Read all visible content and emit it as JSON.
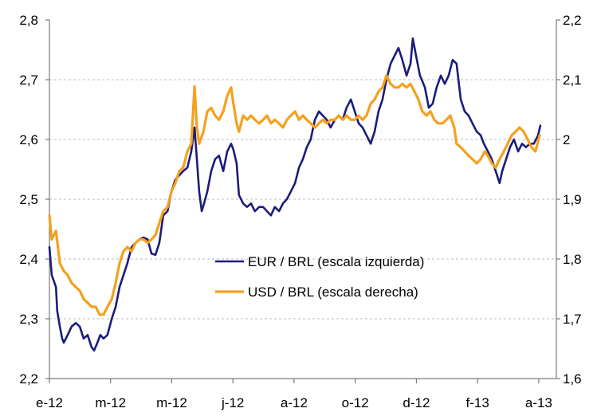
{
  "chart_data": {
    "type": "line",
    "title": "",
    "xlabel": "",
    "ylabel": "",
    "grid": true,
    "legend_position": "center",
    "xlim": [
      0,
      15.54
    ],
    "xticks": [
      {
        "value": 0,
        "label": "e-12"
      },
      {
        "value": 1.875,
        "label": "m-12"
      },
      {
        "value": 3.75,
        "label": "m-12"
      },
      {
        "value": 5.625,
        "label": "j-12"
      },
      {
        "value": 7.5,
        "label": "a-12"
      },
      {
        "value": 9.375,
        "label": "o-12"
      },
      {
        "value": 11.25,
        "label": "d-12"
      },
      {
        "value": 13.125,
        "label": "f-13"
      },
      {
        "value": 15,
        "label": "a-13"
      }
    ],
    "y_left": {
      "ylim": [
        2.2,
        2.8
      ],
      "ticks": [
        {
          "value": 2.8,
          "label": "2,8"
        },
        {
          "value": 2.7,
          "label": "2,7"
        },
        {
          "value": 2.6,
          "label": "2,6"
        },
        {
          "value": 2.5,
          "label": "2,5"
        },
        {
          "value": 2.4,
          "label": "2,4"
        },
        {
          "value": 2.3,
          "label": "2,3"
        },
        {
          "value": 2.2,
          "label": "2,2"
        }
      ]
    },
    "y_right": {
      "ylim": [
        1.6,
        2.2
      ],
      "ticks": [
        {
          "value": 2.2,
          "label": "2,2"
        },
        {
          "value": 2.1,
          "label": "2,1"
        },
        {
          "value": 2.0,
          "label": "2"
        },
        {
          "value": 1.9,
          "label": "1,9"
        },
        {
          "value": 1.8,
          "label": "1,8"
        },
        {
          "value": 1.7,
          "label": "1,7"
        },
        {
          "value": 1.6,
          "label": "1,6"
        }
      ]
    },
    "series": [
      {
        "name": "EUR / BRL (escala izquierda)",
        "secondary_axis": false,
        "color": "#1C1C7A",
        "points": [
          [
            0,
            2.42
          ],
          [
            0.07,
            2.373
          ],
          [
            0.2,
            2.353
          ],
          [
            0.24,
            2.313
          ],
          [
            0.32,
            2.287
          ],
          [
            0.39,
            2.267
          ],
          [
            0.44,
            2.26
          ],
          [
            0.56,
            2.273
          ],
          [
            0.68,
            2.287
          ],
          [
            0.81,
            2.293
          ],
          [
            0.93,
            2.287
          ],
          [
            1.05,
            2.267
          ],
          [
            1.17,
            2.273
          ],
          [
            1.29,
            2.253
          ],
          [
            1.37,
            2.247
          ],
          [
            1.47,
            2.26
          ],
          [
            1.56,
            2.273
          ],
          [
            1.66,
            2.267
          ],
          [
            1.78,
            2.273
          ],
          [
            1.91,
            2.3
          ],
          [
            2.03,
            2.32
          ],
          [
            2.15,
            2.353
          ],
          [
            2.27,
            2.373
          ],
          [
            2.39,
            2.393
          ],
          [
            2.52,
            2.42
          ],
          [
            2.64,
            2.427
          ],
          [
            2.76,
            2.433
          ],
          [
            2.88,
            2.436
          ],
          [
            3.01,
            2.433
          ],
          [
            3.13,
            2.409
          ],
          [
            3.25,
            2.407
          ],
          [
            3.37,
            2.427
          ],
          [
            3.49,
            2.473
          ],
          [
            3.62,
            2.48
          ],
          [
            3.74,
            2.513
          ],
          [
            3.86,
            2.533
          ],
          [
            3.98,
            2.54
          ],
          [
            4.1,
            2.547
          ],
          [
            4.23,
            2.553
          ],
          [
            4.35,
            2.58
          ],
          [
            4.45,
            2.62
          ],
          [
            4.52,
            2.567
          ],
          [
            4.59,
            2.513
          ],
          [
            4.67,
            2.48
          ],
          [
            4.74,
            2.493
          ],
          [
            4.84,
            2.513
          ],
          [
            4.96,
            2.547
          ],
          [
            5.08,
            2.567
          ],
          [
            5.2,
            2.573
          ],
          [
            5.33,
            2.547
          ],
          [
            5.45,
            2.58
          ],
          [
            5.57,
            2.593
          ],
          [
            5.64,
            2.583
          ],
          [
            5.74,
            2.56
          ],
          [
            5.81,
            2.507
          ],
          [
            5.94,
            2.493
          ],
          [
            6.06,
            2.487
          ],
          [
            6.18,
            2.493
          ],
          [
            6.3,
            2.48
          ],
          [
            6.43,
            2.487
          ],
          [
            6.55,
            2.487
          ],
          [
            6.67,
            2.48
          ],
          [
            6.79,
            2.473
          ],
          [
            6.91,
            2.487
          ],
          [
            7.04,
            2.48
          ],
          [
            7.16,
            2.493
          ],
          [
            7.28,
            2.5
          ],
          [
            7.4,
            2.513
          ],
          [
            7.53,
            2.527
          ],
          [
            7.65,
            2.553
          ],
          [
            7.77,
            2.567
          ],
          [
            7.89,
            2.587
          ],
          [
            8.01,
            2.6
          ],
          [
            8.14,
            2.633
          ],
          [
            8.26,
            2.647
          ],
          [
            8.38,
            2.64
          ],
          [
            8.5,
            2.633
          ],
          [
            8.62,
            2.62
          ],
          [
            8.75,
            2.633
          ],
          [
            8.87,
            2.64
          ],
          [
            8.99,
            2.633
          ],
          [
            9.11,
            2.653
          ],
          [
            9.24,
            2.667
          ],
          [
            9.36,
            2.647
          ],
          [
            9.48,
            2.627
          ],
          [
            9.6,
            2.62
          ],
          [
            9.72,
            2.607
          ],
          [
            9.85,
            2.593
          ],
          [
            9.97,
            2.613
          ],
          [
            10.09,
            2.647
          ],
          [
            10.21,
            2.667
          ],
          [
            10.33,
            2.7
          ],
          [
            10.46,
            2.727
          ],
          [
            10.58,
            2.74
          ],
          [
            10.7,
            2.753
          ],
          [
            10.82,
            2.733
          ],
          [
            10.95,
            2.707
          ],
          [
            11.07,
            2.727
          ],
          [
            11.14,
            2.769
          ],
          [
            11.24,
            2.74
          ],
          [
            11.36,
            2.707
          ],
          [
            11.51,
            2.687
          ],
          [
            11.63,
            2.653
          ],
          [
            11.75,
            2.66
          ],
          [
            11.87,
            2.687
          ],
          [
            12.0,
            2.707
          ],
          [
            12.12,
            2.693
          ],
          [
            12.24,
            2.707
          ],
          [
            12.36,
            2.733
          ],
          [
            12.48,
            2.727
          ],
          [
            12.61,
            2.667
          ],
          [
            12.73,
            2.647
          ],
          [
            12.85,
            2.64
          ],
          [
            12.97,
            2.627
          ],
          [
            13.1,
            2.613
          ],
          [
            13.22,
            2.607
          ],
          [
            13.32,
            2.593
          ],
          [
            13.44,
            2.58
          ],
          [
            13.56,
            2.567
          ],
          [
            13.68,
            2.547
          ],
          [
            13.8,
            2.527
          ],
          [
            13.88,
            2.547
          ],
          [
            14.0,
            2.567
          ],
          [
            14.12,
            2.587
          ],
          [
            14.24,
            2.6
          ],
          [
            14.37,
            2.58
          ],
          [
            14.49,
            2.593
          ],
          [
            14.61,
            2.587
          ],
          [
            14.73,
            2.593
          ],
          [
            14.85,
            2.593
          ],
          [
            14.98,
            2.607
          ],
          [
            15.05,
            2.623
          ]
        ]
      },
      {
        "name": "USD / BRL (escala derecha)",
        "secondary_axis": true,
        "color": "#F5A01E",
        "points": [
          [
            0,
            1.873
          ],
          [
            0.07,
            1.833
          ],
          [
            0.2,
            1.847
          ],
          [
            0.32,
            1.793
          ],
          [
            0.44,
            1.78
          ],
          [
            0.56,
            1.773
          ],
          [
            0.68,
            1.76
          ],
          [
            0.81,
            1.753
          ],
          [
            0.93,
            1.747
          ],
          [
            1.05,
            1.733
          ],
          [
            1.17,
            1.727
          ],
          [
            1.29,
            1.72
          ],
          [
            1.42,
            1.72
          ],
          [
            1.54,
            1.707
          ],
          [
            1.66,
            1.707
          ],
          [
            1.78,
            1.72
          ],
          [
            1.91,
            1.733
          ],
          [
            2.03,
            1.76
          ],
          [
            2.15,
            1.793
          ],
          [
            2.27,
            1.813
          ],
          [
            2.39,
            1.82
          ],
          [
            2.52,
            1.813
          ],
          [
            2.64,
            1.827
          ],
          [
            2.76,
            1.833
          ],
          [
            2.88,
            1.833
          ],
          [
            3.01,
            1.827
          ],
          [
            3.13,
            1.833
          ],
          [
            3.25,
            1.84
          ],
          [
            3.37,
            1.86
          ],
          [
            3.49,
            1.88
          ],
          [
            3.62,
            1.887
          ],
          [
            3.74,
            1.913
          ],
          [
            3.86,
            1.927
          ],
          [
            3.98,
            1.947
          ],
          [
            4.1,
            1.953
          ],
          [
            4.23,
            1.98
          ],
          [
            4.35,
            1.993
          ],
          [
            4.45,
            2.089
          ],
          [
            4.52,
            2.02
          ],
          [
            4.59,
            1.993
          ],
          [
            4.72,
            2.013
          ],
          [
            4.84,
            2.047
          ],
          [
            4.96,
            2.053
          ],
          [
            5.08,
            2.04
          ],
          [
            5.2,
            2.033
          ],
          [
            5.33,
            2.047
          ],
          [
            5.45,
            2.073
          ],
          [
            5.57,
            2.087
          ],
          [
            5.64,
            2.06
          ],
          [
            5.74,
            2.027
          ],
          [
            5.81,
            2.013
          ],
          [
            5.94,
            2.04
          ],
          [
            6.06,
            2.033
          ],
          [
            6.18,
            2.04
          ],
          [
            6.3,
            2.033
          ],
          [
            6.43,
            2.027
          ],
          [
            6.55,
            2.033
          ],
          [
            6.67,
            2.04
          ],
          [
            6.79,
            2.027
          ],
          [
            6.91,
            2.033
          ],
          [
            7.04,
            2.027
          ],
          [
            7.16,
            2.02
          ],
          [
            7.28,
            2.033
          ],
          [
            7.4,
            2.04
          ],
          [
            7.53,
            2.047
          ],
          [
            7.65,
            2.033
          ],
          [
            7.77,
            2.04
          ],
          [
            7.89,
            2.033
          ],
          [
            8.01,
            2.027
          ],
          [
            8.14,
            2.02
          ],
          [
            8.26,
            2.027
          ],
          [
            8.38,
            2.033
          ],
          [
            8.5,
            2.027
          ],
          [
            8.62,
            2.033
          ],
          [
            8.75,
            2.033
          ],
          [
            8.87,
            2.04
          ],
          [
            8.99,
            2.033
          ],
          [
            9.11,
            2.04
          ],
          [
            9.24,
            2.033
          ],
          [
            9.36,
            2.033
          ],
          [
            9.48,
            2.04
          ],
          [
            9.6,
            2.033
          ],
          [
            9.72,
            2.04
          ],
          [
            9.85,
            2.06
          ],
          [
            9.97,
            2.067
          ],
          [
            10.09,
            2.08
          ],
          [
            10.21,
            2.087
          ],
          [
            10.33,
            2.107
          ],
          [
            10.46,
            2.093
          ],
          [
            10.58,
            2.087
          ],
          [
            10.7,
            2.087
          ],
          [
            10.82,
            2.093
          ],
          [
            10.95,
            2.087
          ],
          [
            11.07,
            2.093
          ],
          [
            11.19,
            2.08
          ],
          [
            11.31,
            2.067
          ],
          [
            11.43,
            2.047
          ],
          [
            11.56,
            2.04
          ],
          [
            11.68,
            2.047
          ],
          [
            11.8,
            2.033
          ],
          [
            11.92,
            2.027
          ],
          [
            12.05,
            2.027
          ],
          [
            12.17,
            2.033
          ],
          [
            12.29,
            2.04
          ],
          [
            12.41,
            2.02
          ],
          [
            12.48,
            1.993
          ],
          [
            12.61,
            1.987
          ],
          [
            12.73,
            1.98
          ],
          [
            12.85,
            1.973
          ],
          [
            12.97,
            1.967
          ],
          [
            13.1,
            1.96
          ],
          [
            13.22,
            1.967
          ],
          [
            13.34,
            1.98
          ],
          [
            13.44,
            1.973
          ],
          [
            13.56,
            1.96
          ],
          [
            13.68,
            1.953
          ],
          [
            13.8,
            1.967
          ],
          [
            13.93,
            1.98
          ],
          [
            14.05,
            1.993
          ],
          [
            14.17,
            2.007
          ],
          [
            14.29,
            2.013
          ],
          [
            14.41,
            2.02
          ],
          [
            14.54,
            2.013
          ],
          [
            14.66,
            2.0
          ],
          [
            14.78,
            1.987
          ],
          [
            14.9,
            1.98
          ],
          [
            15.03,
            2.007
          ]
        ]
      }
    ],
    "axis_color": "#7A7A7A",
    "grid_color": "#BDBDBD"
  }
}
